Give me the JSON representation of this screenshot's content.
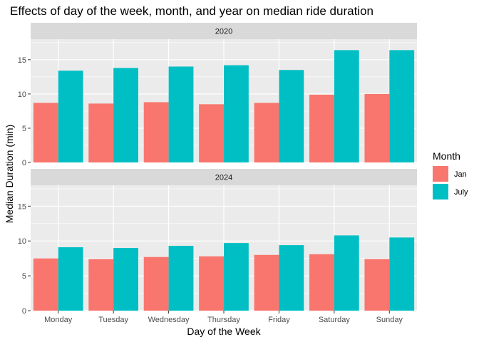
{
  "chart_data": {
    "type": "bar",
    "title": "Effects of day of the week, month, and year on median ride duration",
    "xlabel": "Day of the Week",
    "ylabel": "Median Duration (min)",
    "categories": [
      "Monday",
      "Tuesday",
      "Wednesday",
      "Thursday",
      "Friday",
      "Saturday",
      "Sunday"
    ],
    "ylim": [
      0,
      18
    ],
    "yticks": [
      0,
      5,
      10,
      15
    ],
    "grid": true,
    "legend": {
      "title": "Month",
      "position": "right"
    },
    "facets": [
      {
        "label": "2020",
        "series": [
          {
            "name": "Jan",
            "color": "#F8766D",
            "values": [
              8.7,
              8.6,
              8.8,
              8.5,
              8.7,
              9.9,
              10.0
            ]
          },
          {
            "name": "July",
            "color": "#00BFC4",
            "values": [
              13.4,
              13.8,
              14.0,
              14.2,
              13.5,
              16.4,
              16.4
            ]
          }
        ]
      },
      {
        "label": "2024",
        "series": [
          {
            "name": "Jan",
            "color": "#F8766D",
            "values": [
              7.5,
              7.4,
              7.7,
              7.8,
              8.0,
              8.1,
              7.4
            ]
          },
          {
            "name": "July",
            "color": "#00BFC4",
            "values": [
              9.1,
              9.0,
              9.3,
              9.7,
              9.4,
              10.8,
              10.5
            ]
          }
        ]
      }
    ]
  }
}
